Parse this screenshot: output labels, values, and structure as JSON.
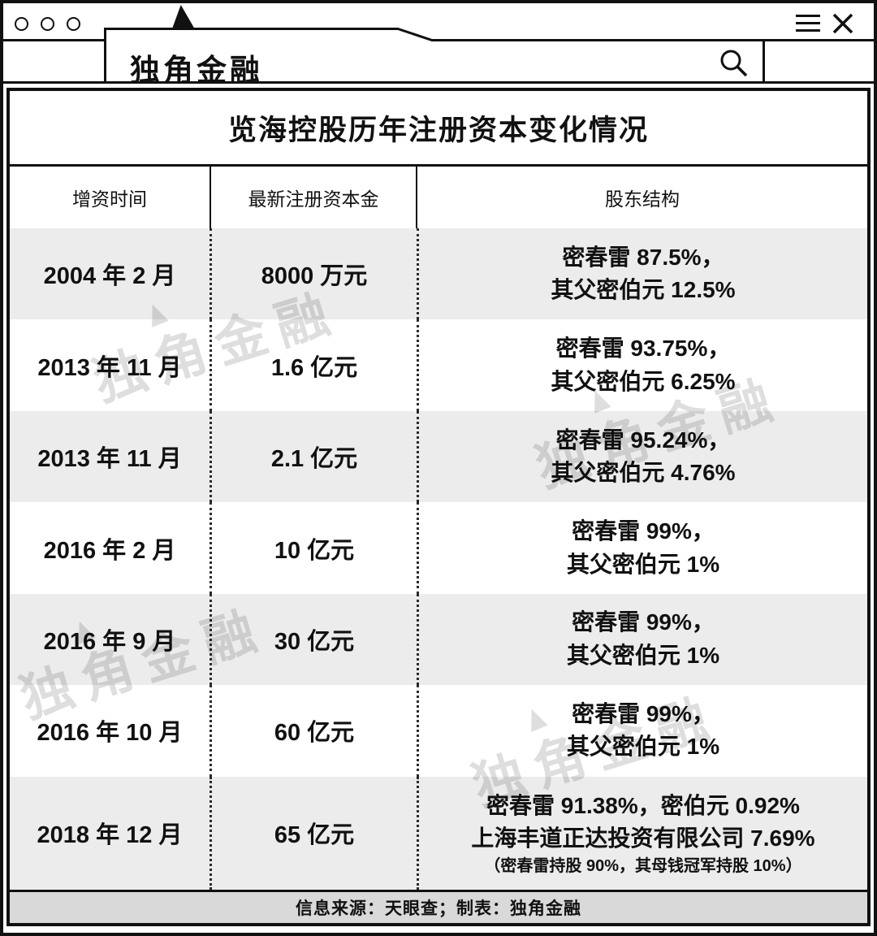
{
  "window": {
    "logo_text": "独角金融",
    "icons": {
      "traffic_lights": "three-outline-circles",
      "menu": "hamburger-icon",
      "close": "close-icon",
      "search": "search-icon",
      "horn": "unicorn-horn-triangle"
    }
  },
  "watermark": {
    "text": "独角金融"
  },
  "colors": {
    "ink": "#111111",
    "row_alt_bg": "#ececec",
    "footer_bg": "#d9d9d9",
    "watermark": "rgba(0,0,0,0.13)"
  },
  "chart_data": {
    "type": "table",
    "title": "览海控股历年注册资本变化情况",
    "columns": [
      "增资时间",
      "最新注册资本金",
      "股东结构"
    ],
    "rows": [
      {
        "time": "2004 年 2 月",
        "capital": "8000 万元",
        "shareholders": [
          "密春雷 87.5%，",
          "其父密伯元 12.5%"
        ]
      },
      {
        "time": "2013 年 11 月",
        "capital": "1.6 亿元",
        "shareholders": [
          "密春雷 93.75%，",
          "其父密伯元 6.25%"
        ]
      },
      {
        "time": "2013 年 11 月",
        "capital": "2.1 亿元",
        "shareholders": [
          "密春雷 95.24%，",
          "其父密伯元 4.76%"
        ]
      },
      {
        "time": "2016 年 2 月",
        "capital": "10 亿元",
        "shareholders": [
          "密春雷 99%，",
          "其父密伯元 1%"
        ]
      },
      {
        "time": "2016 年 9 月",
        "capital": "30 亿元",
        "shareholders": [
          "密春雷 99%，",
          "其父密伯元 1%"
        ]
      },
      {
        "time": "2016 年 10 月",
        "capital": "60 亿元",
        "shareholders": [
          "密春雷 99%，",
          "其父密伯元 1%"
        ]
      },
      {
        "time": "2018 年 12 月",
        "capital": "65 亿元",
        "shareholders": [
          "密春雷 91.38%，密伯元 0.92%",
          "上海丰道正达投资有限公司 7.69%",
          "（密春雷持股 90%，其母钱冠军持股 10%）"
        ]
      }
    ],
    "source": "信息来源：天眼查；制表：独角金融"
  }
}
